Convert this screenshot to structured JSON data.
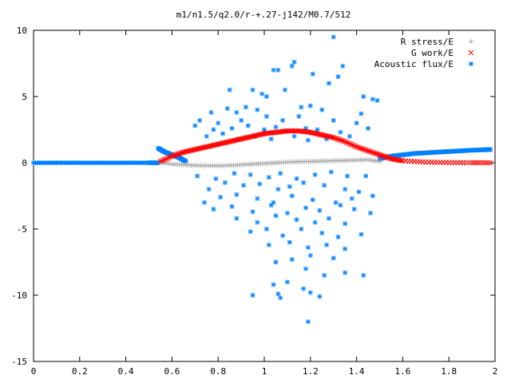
{
  "chart_data": {
    "type": "scatter",
    "title": "m1/n1.5/q2.0/r-+.27-j142/M0.7/512",
    "xlabel": "",
    "ylabel": "",
    "xlim": [
      0,
      2
    ],
    "ylim": [
      -15,
      10
    ],
    "x_ticks": [
      "0",
      "0.2",
      "0.4",
      "0.6",
      "0.8",
      "1",
      "1.2",
      "1.4",
      "1.6",
      "1.8",
      "2"
    ],
    "y_ticks": [
      "10",
      "5",
      "0",
      "-5",
      "-10",
      "-15"
    ],
    "grid": false,
    "legend_position": "top-right",
    "series": [
      {
        "name": "R stress/E",
        "marker": "+",
        "color": "#a0a0a4",
        "x": [
          0.55,
          0.6,
          0.65,
          0.7,
          0.75,
          0.8,
          0.85,
          0.9,
          0.95,
          1.0,
          1.05,
          1.1,
          1.15,
          1.2,
          1.25,
          1.3,
          1.35,
          1.4,
          1.45,
          1.5
        ],
        "y": [
          0.0,
          -0.1,
          -0.15,
          -0.2,
          -0.22,
          -0.22,
          -0.2,
          -0.15,
          -0.1,
          -0.05,
          0.0,
          0.05,
          0.08,
          0.1,
          0.12,
          0.15,
          0.17,
          0.2,
          0.22,
          0.1
        ]
      },
      {
        "name": "G work/E",
        "marker": "x",
        "color": "#ff0000",
        "x": [
          0.55,
          0.6,
          0.65,
          0.7,
          0.75,
          0.8,
          0.85,
          0.9,
          0.95,
          1.0,
          1.05,
          1.1,
          1.15,
          1.2,
          1.25,
          1.3,
          1.35,
          1.4,
          1.45,
          1.5,
          1.55,
          1.6,
          1.7,
          1.8,
          1.9,
          1.98
        ],
        "y": [
          0.1,
          0.5,
          0.8,
          1.0,
          1.2,
          1.4,
          1.6,
          1.8,
          2.0,
          2.2,
          2.3,
          2.4,
          2.4,
          2.3,
          2.1,
          1.9,
          1.6,
          1.2,
          0.9,
          0.6,
          0.3,
          0.15,
          0.05,
          0.02,
          0.01,
          0.0
        ]
      },
      {
        "name": "Acoustic flux/E",
        "marker": "*",
        "color": "#0080ff",
        "line_segments": [
          {
            "x": [
              0.0,
              0.1,
              0.2,
              0.3,
              0.4,
              0.5,
              0.54
            ],
            "y": [
              0,
              0,
              0,
              0,
              0,
              0,
              0
            ]
          },
          {
            "x": [
              0.54,
              0.57,
              0.6,
              0.63,
              0.66
            ],
            "y": [
              1.1,
              0.8,
              0.6,
              0.4,
              0.1
            ]
          },
          {
            "x": [
              1.5,
              1.55,
              1.6,
              1.65,
              1.7,
              1.75,
              1.8,
              1.85,
              1.9,
              1.95,
              1.98
            ],
            "y": [
              0.3,
              0.5,
              0.6,
              0.7,
              0.75,
              0.8,
              0.85,
              0.9,
              0.95,
              0.98,
              1.0
            ]
          }
        ],
        "scatter": {
          "x": [
            1.3,
            1.12,
            1.13,
            1.04,
            1.06,
            1.21,
            1.34,
            1.32,
            1.28,
            0.85,
            0.95,
            0.99,
            1.01,
            1.09,
            1.43,
            1.47,
            1.49,
            0.77,
            0.84,
            0.88,
            0.92,
            0.97,
            1.16,
            1.2,
            1.25,
            1.42,
            0.72,
            0.8,
            0.9,
            1.01,
            1.08,
            1.15,
            1.3,
            1.4,
            0.7,
            0.78,
            0.86,
            0.93,
            1.0,
            1.05,
            1.1,
            1.18,
            1.23,
            1.33,
            1.45,
            0.75,
            0.82,
            0.89,
            0.96,
            1.03,
            1.13,
            1.19,
            1.27,
            1.37,
            0.71,
            0.79,
            0.87,
            0.94,
            1.02,
            1.07,
            1.14,
            1.22,
            1.29,
            1.36,
            1.44,
            0.76,
            0.83,
            0.91,
            0.98,
            1.06,
            1.11,
            1.17,
            1.26,
            1.35,
            1.41,
            0.74,
            0.81,
            0.88,
            0.97,
            1.04,
            1.12,
            1.21,
            1.31,
            1.38,
            1.47,
            0.78,
            0.86,
            0.95,
            1.03,
            1.1,
            1.18,
            1.24,
            1.33,
            1.39,
            1.46,
            0.88,
            0.97,
            1.05,
            1.14,
            1.22,
            1.28,
            1.35,
            0.94,
            1.01,
            1.08,
            1.16,
            1.25,
            1.32,
            1.42,
            1.02,
            1.11,
            1.19,
            1.27,
            1.35,
            1.05,
            1.12,
            1.2,
            1.3,
            1.18,
            1.26,
            1.35,
            1.43,
            1.04,
            1.1,
            1.17,
            0.95,
            1.07,
            1.2,
            1.24,
            1.06,
            1.19
          ],
          "y": [
            9.5,
            7.3,
            7.6,
            7.0,
            7.0,
            6.7,
            7.3,
            6.5,
            6.0,
            5.5,
            5.5,
            5.2,
            5.0,
            5.5,
            5.0,
            4.8,
            4.7,
            3.8,
            4.1,
            3.8,
            4.2,
            4.0,
            4.2,
            4.3,
            4.0,
            3.7,
            3.2,
            3.0,
            3.2,
            3.5,
            3.2,
            3.5,
            3.2,
            3.0,
            2.8,
            2.5,
            2.6,
            2.8,
            2.5,
            2.7,
            2.4,
            2.6,
            2.5,
            2.3,
            2.6,
            2.0,
            2.2,
            1.8,
            2.0,
            1.8,
            2.0,
            1.7,
            1.8,
            2.0,
            -1.0,
            -1.2,
            -0.8,
            -0.9,
            -1.1,
            -0.8,
            -1.2,
            -0.9,
            -0.7,
            -1.0,
            -1.0,
            -2.0,
            -1.5,
            -1.7,
            -1.6,
            -2.0,
            -1.8,
            -1.5,
            -1.7,
            -2.0,
            -2.2,
            -3.0,
            -2.6,
            -2.4,
            -2.7,
            -3.0,
            -2.5,
            -2.8,
            -3.0,
            -2.7,
            -2.5,
            -3.5,
            -3.3,
            -3.7,
            -3.2,
            -3.8,
            -3.4,
            -3.6,
            -3.2,
            -3.5,
            -3.8,
            -4.2,
            -4.5,
            -4.0,
            -4.3,
            -4.5,
            -4.2,
            -4.6,
            -5.2,
            -5.0,
            -5.5,
            -5.0,
            -5.3,
            -5.6,
            -5.4,
            -6.2,
            -6.0,
            -6.4,
            -6.2,
            -6.5,
            -7.5,
            -7.3,
            -7.0,
            -7.2,
            -8.0,
            -8.5,
            -8.3,
            -8.5,
            -9.2,
            -9.0,
            -9.5,
            -10.0,
            -10.2,
            -9.8,
            -10.1,
            -9.9,
            -12.0
          ]
        }
      }
    ]
  }
}
